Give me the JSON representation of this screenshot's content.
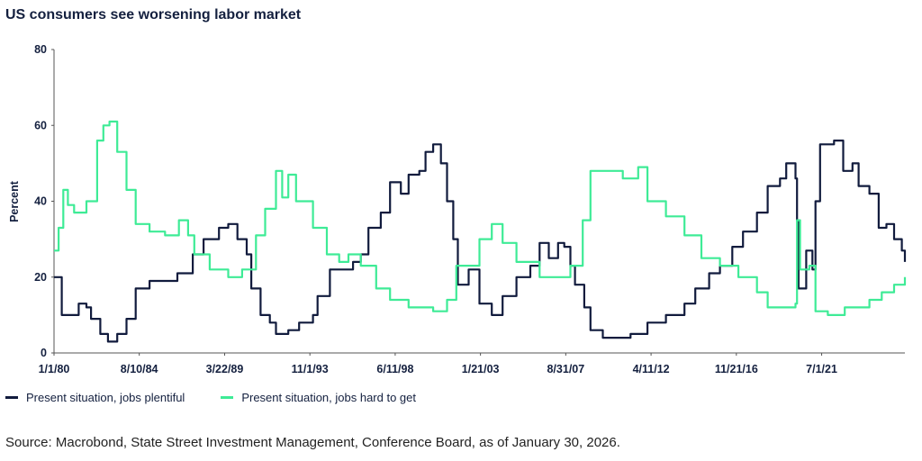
{
  "chart_data": {
    "type": "line",
    "title": "US consumers see worsening labor market",
    "ylabel": "Percent",
    "xlabel": "",
    "ylim": [
      0,
      80
    ],
    "yticks": [
      0,
      20,
      40,
      60,
      80
    ],
    "xlim": [
      "1980-01",
      "2026-01"
    ],
    "xticks": [
      {
        "date": "1980-01-01",
        "label": "1/1/80"
      },
      {
        "date": "1984-08-10",
        "label": "8/10/84"
      },
      {
        "date": "1989-03-22",
        "label": "3/22/89"
      },
      {
        "date": "1993-11-01",
        "label": "11/1/93"
      },
      {
        "date": "1998-06-11",
        "label": "6/11/98"
      },
      {
        "date": "2003-01-21",
        "label": "1/21/03"
      },
      {
        "date": "2007-08-31",
        "label": "8/31/07"
      },
      {
        "date": "2012-04-11",
        "label": "4/11/12"
      },
      {
        "date": "2016-11-21",
        "label": "11/21/16"
      },
      {
        "date": "2021-07-01",
        "label": "7/1/21"
      }
    ],
    "grid": false,
    "legend_position": "bottom",
    "series": [
      {
        "name": "Present situation, jobs plentiful",
        "color": "#111b3d",
        "points": [
          [
            "1980-01",
            20
          ],
          [
            "1980-03",
            20
          ],
          [
            "1980-06",
            10
          ],
          [
            "1981-05",
            13
          ],
          [
            "1981-10",
            12
          ],
          [
            "1982-01",
            9
          ],
          [
            "1982-07",
            5
          ],
          [
            "1982-12",
            3
          ],
          [
            "1983-06",
            5
          ],
          [
            "1983-12",
            9
          ],
          [
            "1984-06",
            17
          ],
          [
            "1985-03",
            19
          ],
          [
            "1986-01",
            19
          ],
          [
            "1986-09",
            21
          ],
          [
            "1987-02",
            21
          ],
          [
            "1987-07",
            26
          ],
          [
            "1988-02",
            30
          ],
          [
            "1988-12",
            33
          ],
          [
            "1989-06",
            34
          ],
          [
            "1989-12",
            30
          ],
          [
            "1990-06",
            26
          ],
          [
            "1990-09",
            17
          ],
          [
            "1991-03",
            10
          ],
          [
            "1991-09",
            8
          ],
          [
            "1992-01",
            5
          ],
          [
            "1992-09",
            6
          ],
          [
            "1993-04",
            8
          ],
          [
            "1994-01",
            10
          ],
          [
            "1994-04",
            15
          ],
          [
            "1994-12",
            22
          ],
          [
            "1995-08",
            22
          ],
          [
            "1996-03",
            24
          ],
          [
            "1996-08",
            26
          ],
          [
            "1997-01",
            33
          ],
          [
            "1997-09",
            37
          ],
          [
            "1998-03",
            45
          ],
          [
            "1998-10",
            42
          ],
          [
            "1999-03",
            47
          ],
          [
            "1999-10",
            48
          ],
          [
            "2000-02",
            53
          ],
          [
            "2000-07",
            55
          ],
          [
            "2000-12",
            50
          ],
          [
            "2001-04",
            40
          ],
          [
            "2001-08",
            30
          ],
          [
            "2001-11",
            18
          ],
          [
            "2002-06",
            22
          ],
          [
            "2003-01",
            13
          ],
          [
            "2003-09",
            10
          ],
          [
            "2004-04",
            15
          ],
          [
            "2005-01",
            20
          ],
          [
            "2005-10",
            23
          ],
          [
            "2006-04",
            29
          ],
          [
            "2006-10",
            25
          ],
          [
            "2007-04",
            29
          ],
          [
            "2007-08",
            28
          ],
          [
            "2007-12",
            23
          ],
          [
            "2008-03",
            18
          ],
          [
            "2008-09",
            12
          ],
          [
            "2009-01",
            6
          ],
          [
            "2009-09",
            4
          ],
          [
            "2010-07",
            4
          ],
          [
            "2011-03",
            5
          ],
          [
            "2011-10",
            5
          ],
          [
            "2012-02",
            8
          ],
          [
            "2013-02",
            10
          ],
          [
            "2014-02",
            13
          ],
          [
            "2014-09",
            17
          ],
          [
            "2015-06",
            21
          ],
          [
            "2016-01",
            23
          ],
          [
            "2016-09",
            28
          ],
          [
            "2017-04",
            32
          ],
          [
            "2018-01",
            37
          ],
          [
            "2018-08",
            44
          ],
          [
            "2019-04",
            46
          ],
          [
            "2019-08",
            50
          ],
          [
            "2020-02",
            46
          ],
          [
            "2020-03",
            35
          ],
          [
            "2020-04",
            17
          ],
          [
            "2020-09",
            27
          ],
          [
            "2021-01",
            22
          ],
          [
            "2021-03",
            40
          ],
          [
            "2021-06",
            55
          ],
          [
            "2022-03",
            56
          ],
          [
            "2022-09",
            48
          ],
          [
            "2023-03",
            50
          ],
          [
            "2023-07",
            44
          ],
          [
            "2024-02",
            42
          ],
          [
            "2024-08",
            33
          ],
          [
            "2025-01",
            34
          ],
          [
            "2025-06",
            30
          ],
          [
            "2025-11",
            27
          ],
          [
            "2026-01",
            24
          ]
        ]
      },
      {
        "name": "Present situation, jobs hard to get",
        "color": "#3eeb96",
        "points": [
          [
            "1980-01",
            27
          ],
          [
            "1980-04",
            33
          ],
          [
            "1980-07",
            43
          ],
          [
            "1980-10",
            39
          ],
          [
            "1981-02",
            37
          ],
          [
            "1981-06",
            37
          ],
          [
            "1981-10",
            40
          ],
          [
            "1982-05",
            56
          ],
          [
            "1982-09",
            60
          ],
          [
            "1983-01",
            61
          ],
          [
            "1983-06",
            53
          ],
          [
            "1983-12",
            43
          ],
          [
            "1984-06",
            34
          ],
          [
            "1985-03",
            32
          ],
          [
            "1986-01",
            31
          ],
          [
            "1986-10",
            35
          ],
          [
            "1987-04",
            31
          ],
          [
            "1987-08",
            26
          ],
          [
            "1988-06",
            22
          ],
          [
            "1989-06",
            20
          ],
          [
            "1990-03",
            22
          ],
          [
            "1990-12",
            31
          ],
          [
            "1991-06",
            38
          ],
          [
            "1992-01",
            48
          ],
          [
            "1992-05",
            41
          ],
          [
            "1992-09",
            47
          ],
          [
            "1993-02",
            40
          ],
          [
            "1994-01",
            33
          ],
          [
            "1994-10",
            26
          ],
          [
            "1995-06",
            24
          ],
          [
            "1995-12",
            26
          ],
          [
            "1996-08",
            23
          ],
          [
            "1997-06",
            17
          ],
          [
            "1998-03",
            14
          ],
          [
            "1999-03",
            12
          ],
          [
            "2000-07",
            11
          ],
          [
            "2001-04",
            14
          ],
          [
            "2001-10",
            23
          ],
          [
            "2002-06",
            23
          ],
          [
            "2003-01",
            30
          ],
          [
            "2003-09",
            34
          ],
          [
            "2004-04",
            29
          ],
          [
            "2005-01",
            24
          ],
          [
            "2005-10",
            24
          ],
          [
            "2006-04",
            20
          ],
          [
            "2007-04",
            20
          ],
          [
            "2007-12",
            23
          ],
          [
            "2008-08",
            35
          ],
          [
            "2009-01",
            48
          ],
          [
            "2009-12",
            48
          ],
          [
            "2010-10",
            46
          ],
          [
            "2011-08",
            49
          ],
          [
            "2012-02",
            40
          ],
          [
            "2013-02",
            36
          ],
          [
            "2014-02",
            31
          ],
          [
            "2015-01",
            25
          ],
          [
            "2016-01",
            23
          ],
          [
            "2017-01",
            20
          ],
          [
            "2018-01",
            16
          ],
          [
            "2018-08",
            12
          ],
          [
            "2019-04",
            12
          ],
          [
            "2020-02",
            13
          ],
          [
            "2020-03",
            35
          ],
          [
            "2020-05",
            22
          ],
          [
            "2020-11",
            23
          ],
          [
            "2021-03",
            11
          ],
          [
            "2021-11",
            10
          ],
          [
            "2022-10",
            12
          ],
          [
            "2023-07",
            12
          ],
          [
            "2024-02",
            14
          ],
          [
            "2024-10",
            16
          ],
          [
            "2025-06",
            18
          ],
          [
            "2026-01",
            20
          ]
        ]
      }
    ]
  },
  "source": "Source: Macrobond, State Street Investment Management, Conference Board, as of January 30, 2026."
}
